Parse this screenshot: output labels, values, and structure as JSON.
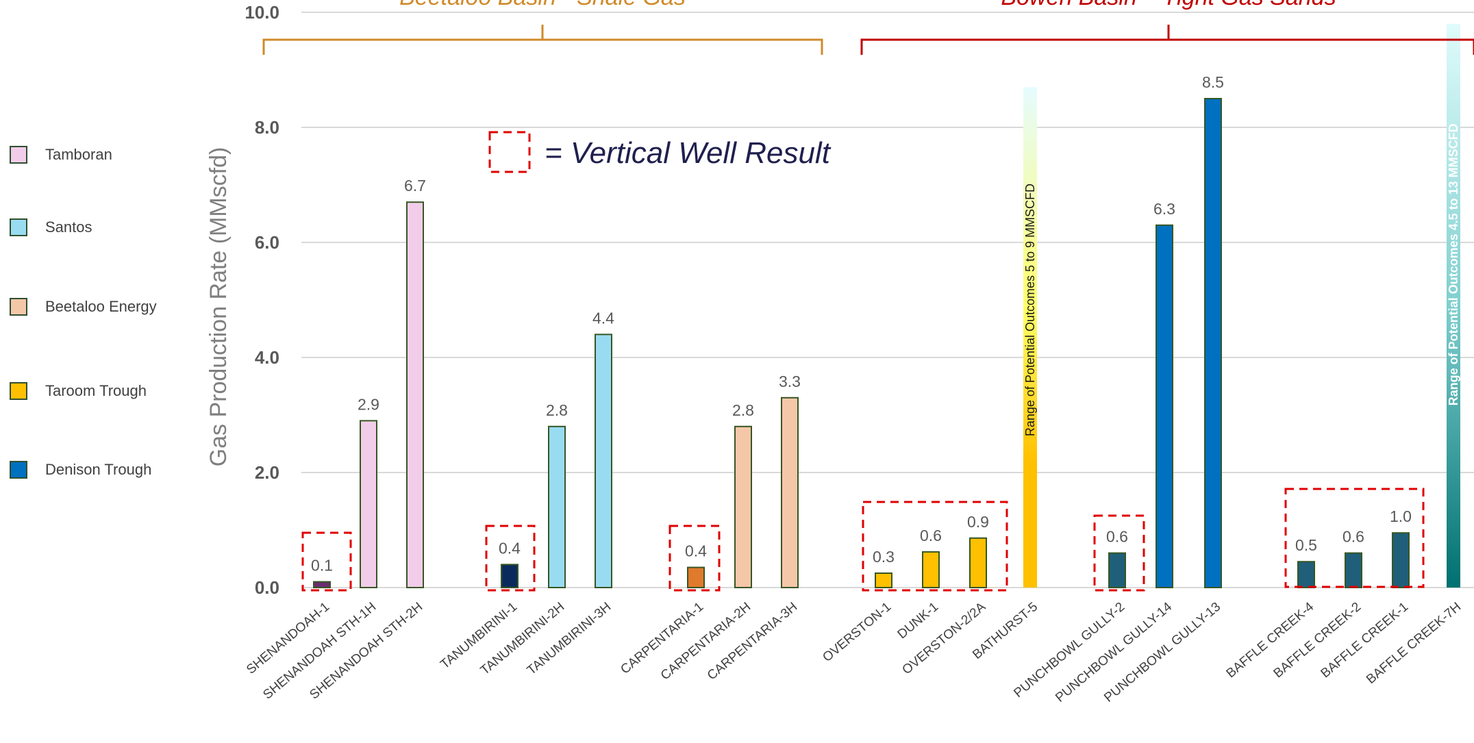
{
  "chart_data": {
    "type": "bar",
    "ylabel": "Gas Production Rate (MMscfd)",
    "ylim": [
      0,
      10
    ],
    "yticks": [
      "0.0",
      "2.0",
      "4.0",
      "6.0",
      "8.0",
      "10.0"
    ],
    "grid": true,
    "legend_position": "left",
    "legend": [
      {
        "name": "Tamboran",
        "color": "#f2cdea"
      },
      {
        "name": "Santos",
        "color": "#99dcf2"
      },
      {
        "name": "Beetaloo Energy",
        "color": "#f5c7a9"
      },
      {
        "name": "Taroom Trough",
        "color": "#ffc000"
      },
      {
        "name": "Denison Trough",
        "color": "#0070c0"
      }
    ],
    "bars": [
      {
        "name": "SHENANDOAH-1",
        "value": 0.1,
        "label": "0.1",
        "color": "#6a2c70",
        "vertical": true
      },
      {
        "name": "SHENANDOAH STH-1H",
        "value": 2.9,
        "label": "2.9",
        "color": "#f2cdea"
      },
      {
        "name": "SHENANDOAH STH-2H",
        "value": 6.7,
        "label": "6.7",
        "color": "#f2cdea"
      },
      {
        "name": "TANUMBIRINI-1",
        "value": 0.4,
        "label": "0.4",
        "color": "#0b2a5c",
        "vertical": true
      },
      {
        "name": "TANUMBIRINI-2H",
        "value": 2.8,
        "label": "2.8",
        "color": "#99dcf2"
      },
      {
        "name": "TANUMBIRINI-3H",
        "value": 4.4,
        "label": "4.4",
        "color": "#99dcf2"
      },
      {
        "name": "CARPENTARIA-1",
        "value": 0.35,
        "label": "0.4",
        "color": "#e07a2c",
        "vertical": true
      },
      {
        "name": "CARPENTARIA-2H",
        "value": 2.8,
        "label": "2.8",
        "color": "#f5c7a9"
      },
      {
        "name": "CARPENTARIA-3H",
        "value": 3.3,
        "label": "3.3",
        "color": "#f5c7a9"
      },
      {
        "name": "OVERSTON-1",
        "value": 0.25,
        "label": "0.3",
        "color": "#ffc000",
        "vertical": true
      },
      {
        "name": "DUNK-1",
        "value": 0.62,
        "label": "0.6",
        "color": "#ffc000",
        "vertical": true
      },
      {
        "name": "OVERSTON-2/2A",
        "value": 0.86,
        "label": "0.9",
        "color": "#ffc000",
        "vertical": true
      },
      {
        "name": "BATHURST-5",
        "value": null,
        "label": "",
        "color": "#ffc000"
      },
      {
        "name": "PUNCHBOWL GULLY-2",
        "value": 0.6,
        "label": "0.6",
        "color": "#1f5f7a",
        "vertical": true
      },
      {
        "name": "PUNCHBOWL GULLY-14",
        "value": 6.3,
        "label": "6.3",
        "color": "#0070c0"
      },
      {
        "name": "PUNCHBOWL GULLY-13",
        "value": 8.5,
        "label": "8.5",
        "color": "#0070c0"
      },
      {
        "name": "BAFFLE CREEK-4",
        "value": 0.45,
        "label": "0.5",
        "color": "#1f5f7a",
        "vertical": true
      },
      {
        "name": "BAFFLE CREEK-2",
        "value": 0.6,
        "label": "0.6",
        "color": "#1f5f7a",
        "vertical": true
      },
      {
        "name": "BAFFLE CREEK-1",
        "value": 0.95,
        "label": "1.0",
        "color": "#1f5f7a",
        "vertical": true
      },
      {
        "name": "BAFFLE CREEK-7H",
        "value": null,
        "label": "",
        "color": "#008080"
      }
    ],
    "ranges": [
      {
        "label": "Range of Potential Outcomes 5 to 9 MMSCFD",
        "from": 0,
        "to": 8.7,
        "color_top": "#e6fbff",
        "color_mid": "#ffff66",
        "color_bottom": "#ffc000"
      },
      {
        "label": "Range of Potential Outcomes 4.5 to 13 MMSCFD",
        "from": 0,
        "to": 9.8,
        "color_top": "#e0fbfb",
        "color_mid": "#7fcfcf",
        "color_bottom": "#007070"
      }
    ],
    "groups": [
      {
        "label": "Beetaloo Basin - Shale Gas",
        "color": "#d08a2a"
      },
      {
        "label": "Bowen Basin – Tight Gas Sands",
        "color": "#c00000"
      }
    ],
    "annotation": "= Vertical Well Result"
  }
}
